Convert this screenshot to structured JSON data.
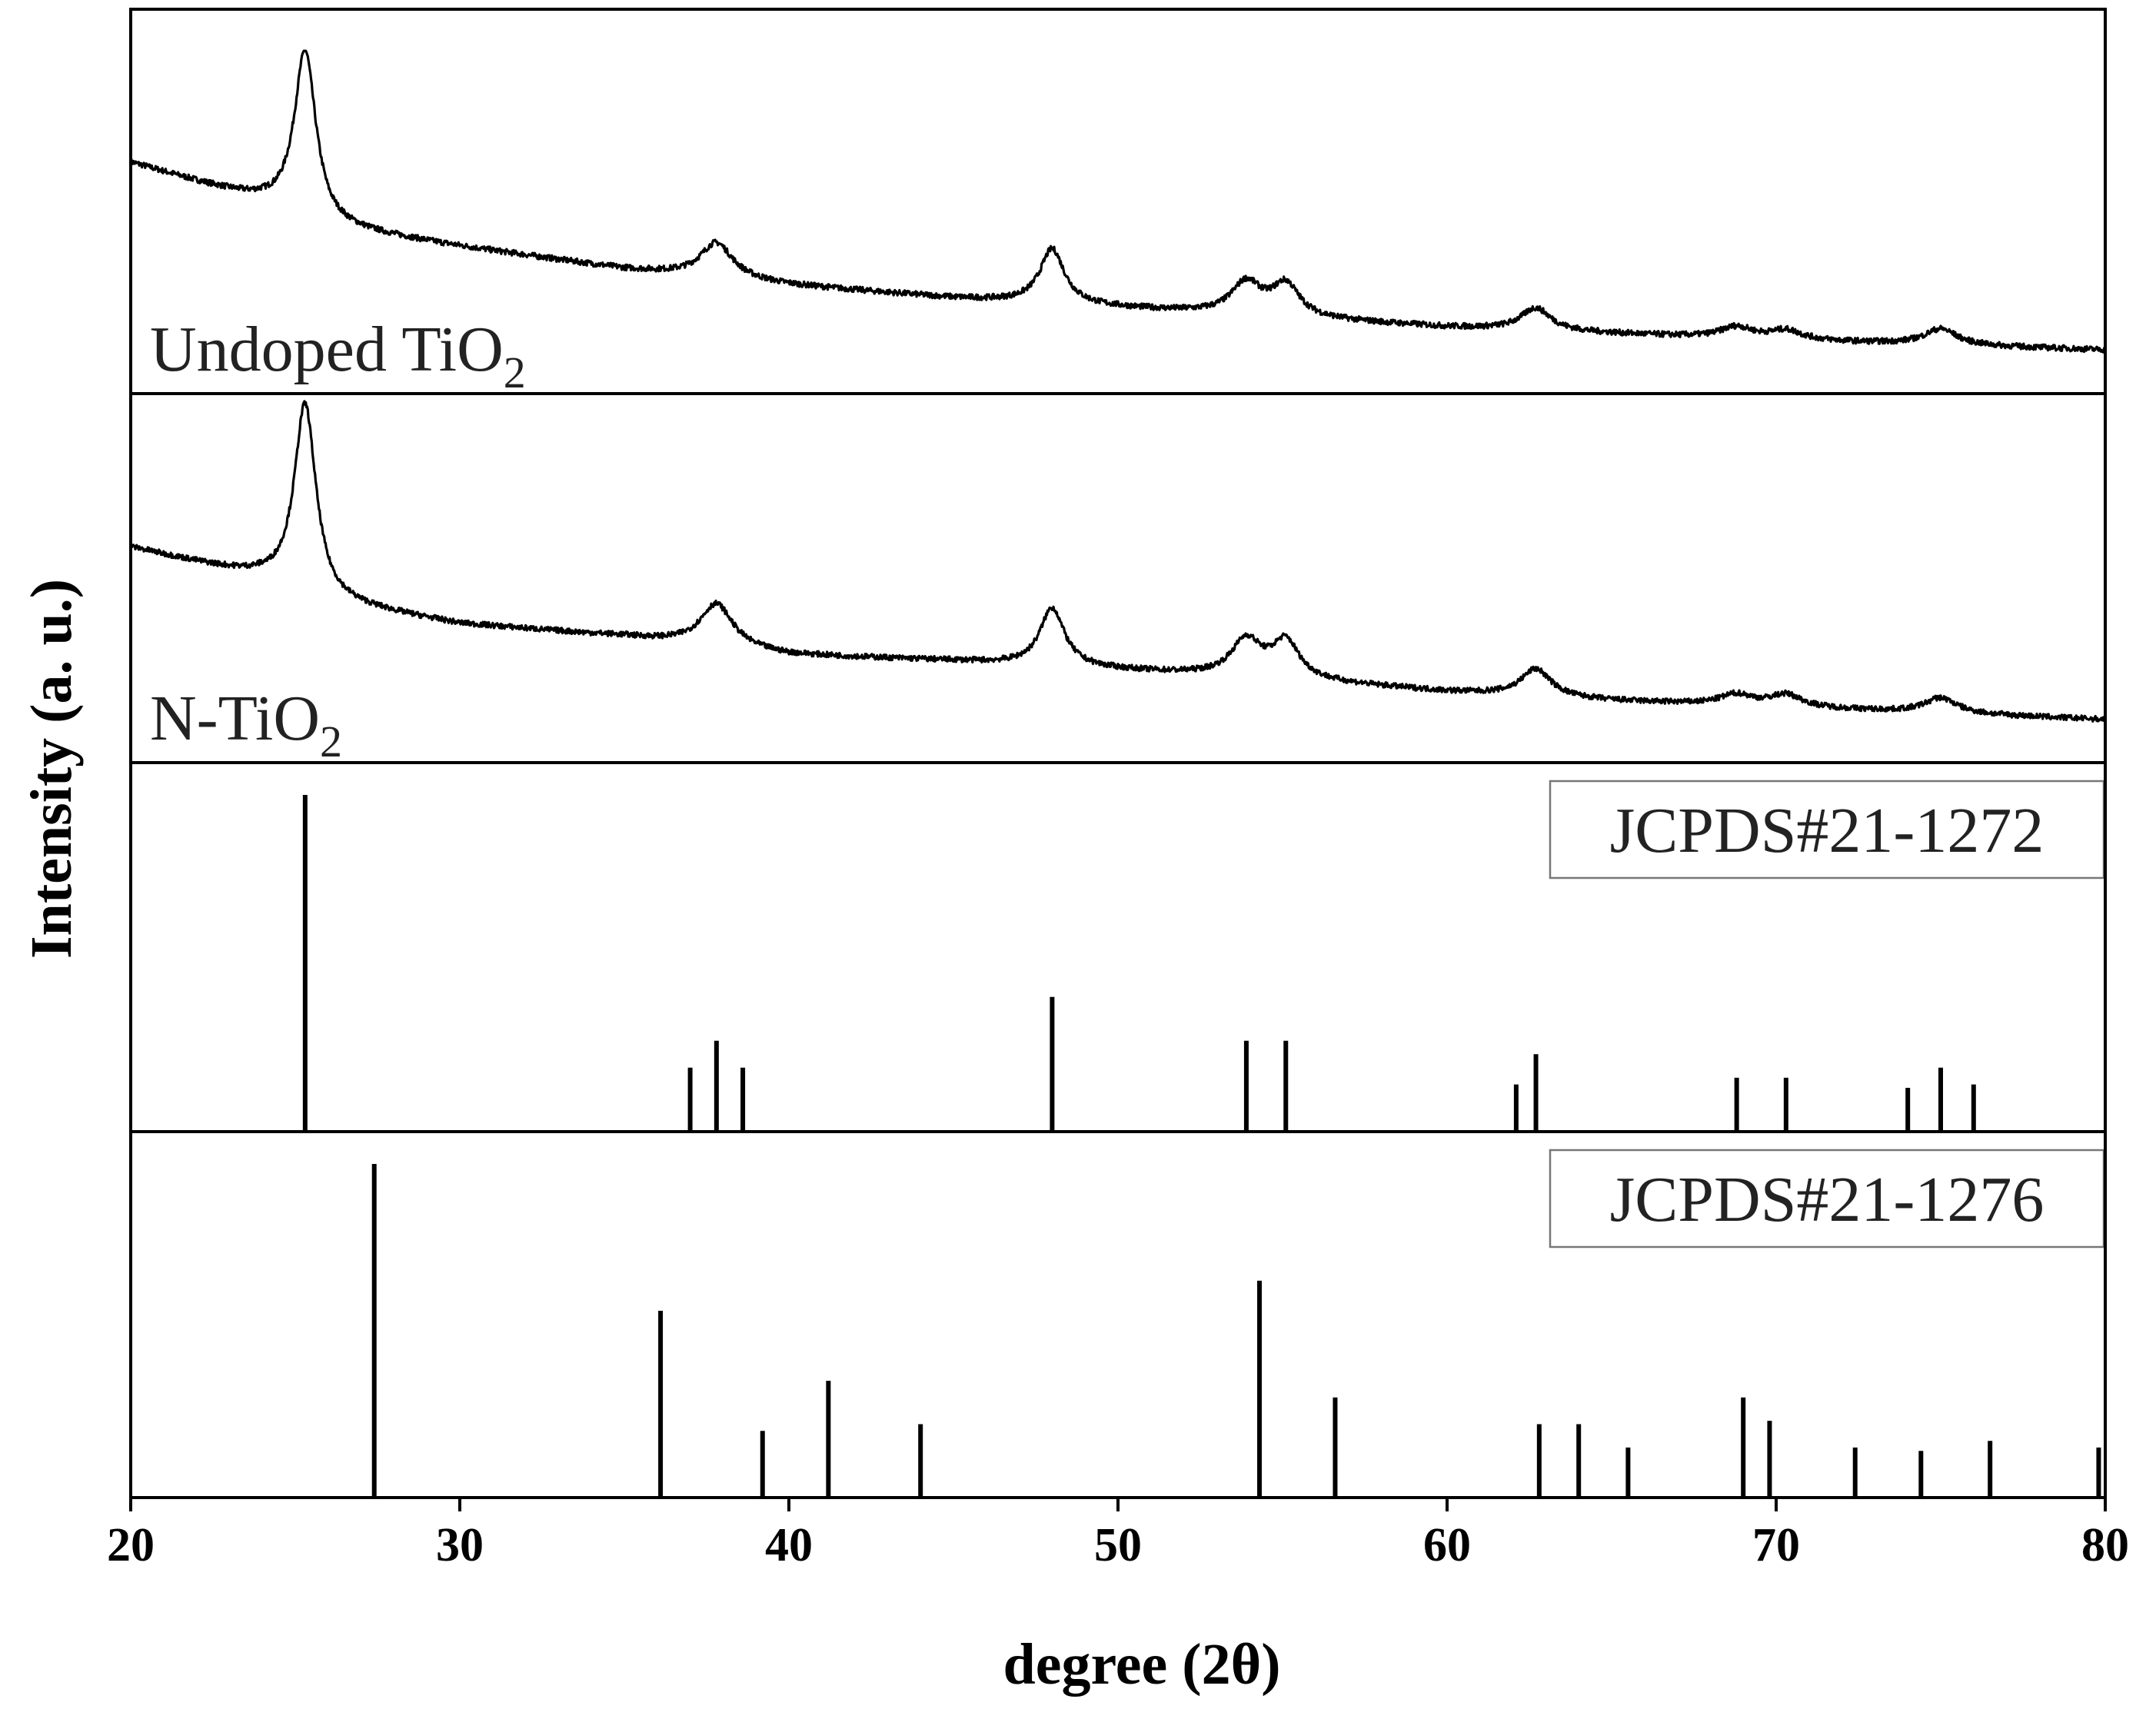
{
  "chart_data": {
    "type": "line",
    "xlabel": "degree (2θ)",
    "ylabel": "Intensity (a. u.)",
    "xlim": [
      20,
      80
    ],
    "xticks": [
      20,
      30,
      40,
      50,
      60,
      70,
      80
    ],
    "panels": [
      {
        "kind": "pattern",
        "label": "Undoped TiO",
        "label_sub": "2",
        "background": [
          [
            20,
            0.62
          ],
          [
            24,
            0.5
          ],
          [
            26,
            0.42
          ],
          [
            30,
            0.36
          ],
          [
            35,
            0.29
          ],
          [
            40,
            0.24
          ],
          [
            45,
            0.2
          ],
          [
            50,
            0.17
          ],
          [
            55,
            0.14
          ],
          [
            60,
            0.11
          ],
          [
            65,
            0.09
          ],
          [
            70,
            0.07
          ],
          [
            75,
            0.055
          ],
          [
            80,
            0.04
          ]
        ],
        "peaks": [
          {
            "x": 25.3,
            "h": 0.52,
            "w": 0.4
          },
          {
            "x": 37.8,
            "h": 0.11,
            "w": 0.6
          },
          {
            "x": 48.0,
            "h": 0.17,
            "w": 0.45
          },
          {
            "x": 53.9,
            "h": 0.1,
            "w": 0.55
          },
          {
            "x": 55.1,
            "h": 0.1,
            "w": 0.5
          },
          {
            "x": 62.7,
            "h": 0.07,
            "w": 0.55
          },
          {
            "x": 68.8,
            "h": 0.035,
            "w": 0.6
          },
          {
            "x": 70.3,
            "h": 0.03,
            "w": 0.6
          },
          {
            "x": 75.0,
            "h": 0.05,
            "w": 0.6
          }
        ]
      },
      {
        "kind": "pattern",
        "label": "N-TiO",
        "label_sub": "2",
        "background": [
          [
            20,
            0.6
          ],
          [
            24,
            0.5
          ],
          [
            26,
            0.42
          ],
          [
            30,
            0.35
          ],
          [
            35,
            0.31
          ],
          [
            40,
            0.25
          ],
          [
            45,
            0.23
          ],
          [
            50,
            0.2
          ],
          [
            55,
            0.17
          ],
          [
            60,
            0.13
          ],
          [
            65,
            0.1
          ],
          [
            70,
            0.08
          ],
          [
            75,
            0.06
          ],
          [
            80,
            0.04
          ]
        ],
        "peaks": [
          {
            "x": 25.3,
            "h": 0.62,
            "w": 0.4
          },
          {
            "x": 37.8,
            "h": 0.14,
            "w": 0.6
          },
          {
            "x": 48.0,
            "h": 0.19,
            "w": 0.45
          },
          {
            "x": 53.9,
            "h": 0.12,
            "w": 0.55
          },
          {
            "x": 55.1,
            "h": 0.12,
            "w": 0.5
          },
          {
            "x": 62.7,
            "h": 0.09,
            "w": 0.55
          },
          {
            "x": 68.8,
            "h": 0.035,
            "w": 0.6
          },
          {
            "x": 70.3,
            "h": 0.04,
            "w": 0.6
          },
          {
            "x": 75.0,
            "h": 0.05,
            "w": 0.6
          }
        ]
      },
      {
        "kind": "reference",
        "label": "JCPDS#21-1272",
        "lines": [
          {
            "x": 25.3,
            "h": 1.0
          },
          {
            "x": 37.0,
            "h": 0.19
          },
          {
            "x": 37.8,
            "h": 0.27
          },
          {
            "x": 38.6,
            "h": 0.19
          },
          {
            "x": 48.0,
            "h": 0.4
          },
          {
            "x": 53.9,
            "h": 0.27
          },
          {
            "x": 55.1,
            "h": 0.27
          },
          {
            "x": 62.1,
            "h": 0.14
          },
          {
            "x": 62.7,
            "h": 0.23
          },
          {
            "x": 68.8,
            "h": 0.16
          },
          {
            "x": 70.3,
            "h": 0.16
          },
          {
            "x": 74.0,
            "h": 0.13
          },
          {
            "x": 75.0,
            "h": 0.19
          },
          {
            "x": 76.0,
            "h": 0.14
          }
        ]
      },
      {
        "kind": "reference",
        "label": "JCPDS#21-1276",
        "lines": [
          {
            "x": 27.4,
            "h": 1.0
          },
          {
            "x": 36.1,
            "h": 0.56
          },
          {
            "x": 39.2,
            "h": 0.2
          },
          {
            "x": 41.2,
            "h": 0.35
          },
          {
            "x": 44.0,
            "h": 0.22
          },
          {
            "x": 54.3,
            "h": 0.65
          },
          {
            "x": 56.6,
            "h": 0.3
          },
          {
            "x": 62.8,
            "h": 0.22
          },
          {
            "x": 64.0,
            "h": 0.22
          },
          {
            "x": 65.5,
            "h": 0.15
          },
          {
            "x": 69.0,
            "h": 0.3
          },
          {
            "x": 69.8,
            "h": 0.23
          },
          {
            "x": 72.4,
            "h": 0.15
          },
          {
            "x": 74.4,
            "h": 0.14
          },
          {
            "x": 76.5,
            "h": 0.17
          },
          {
            "x": 79.8,
            "h": 0.15
          }
        ]
      }
    ]
  }
}
